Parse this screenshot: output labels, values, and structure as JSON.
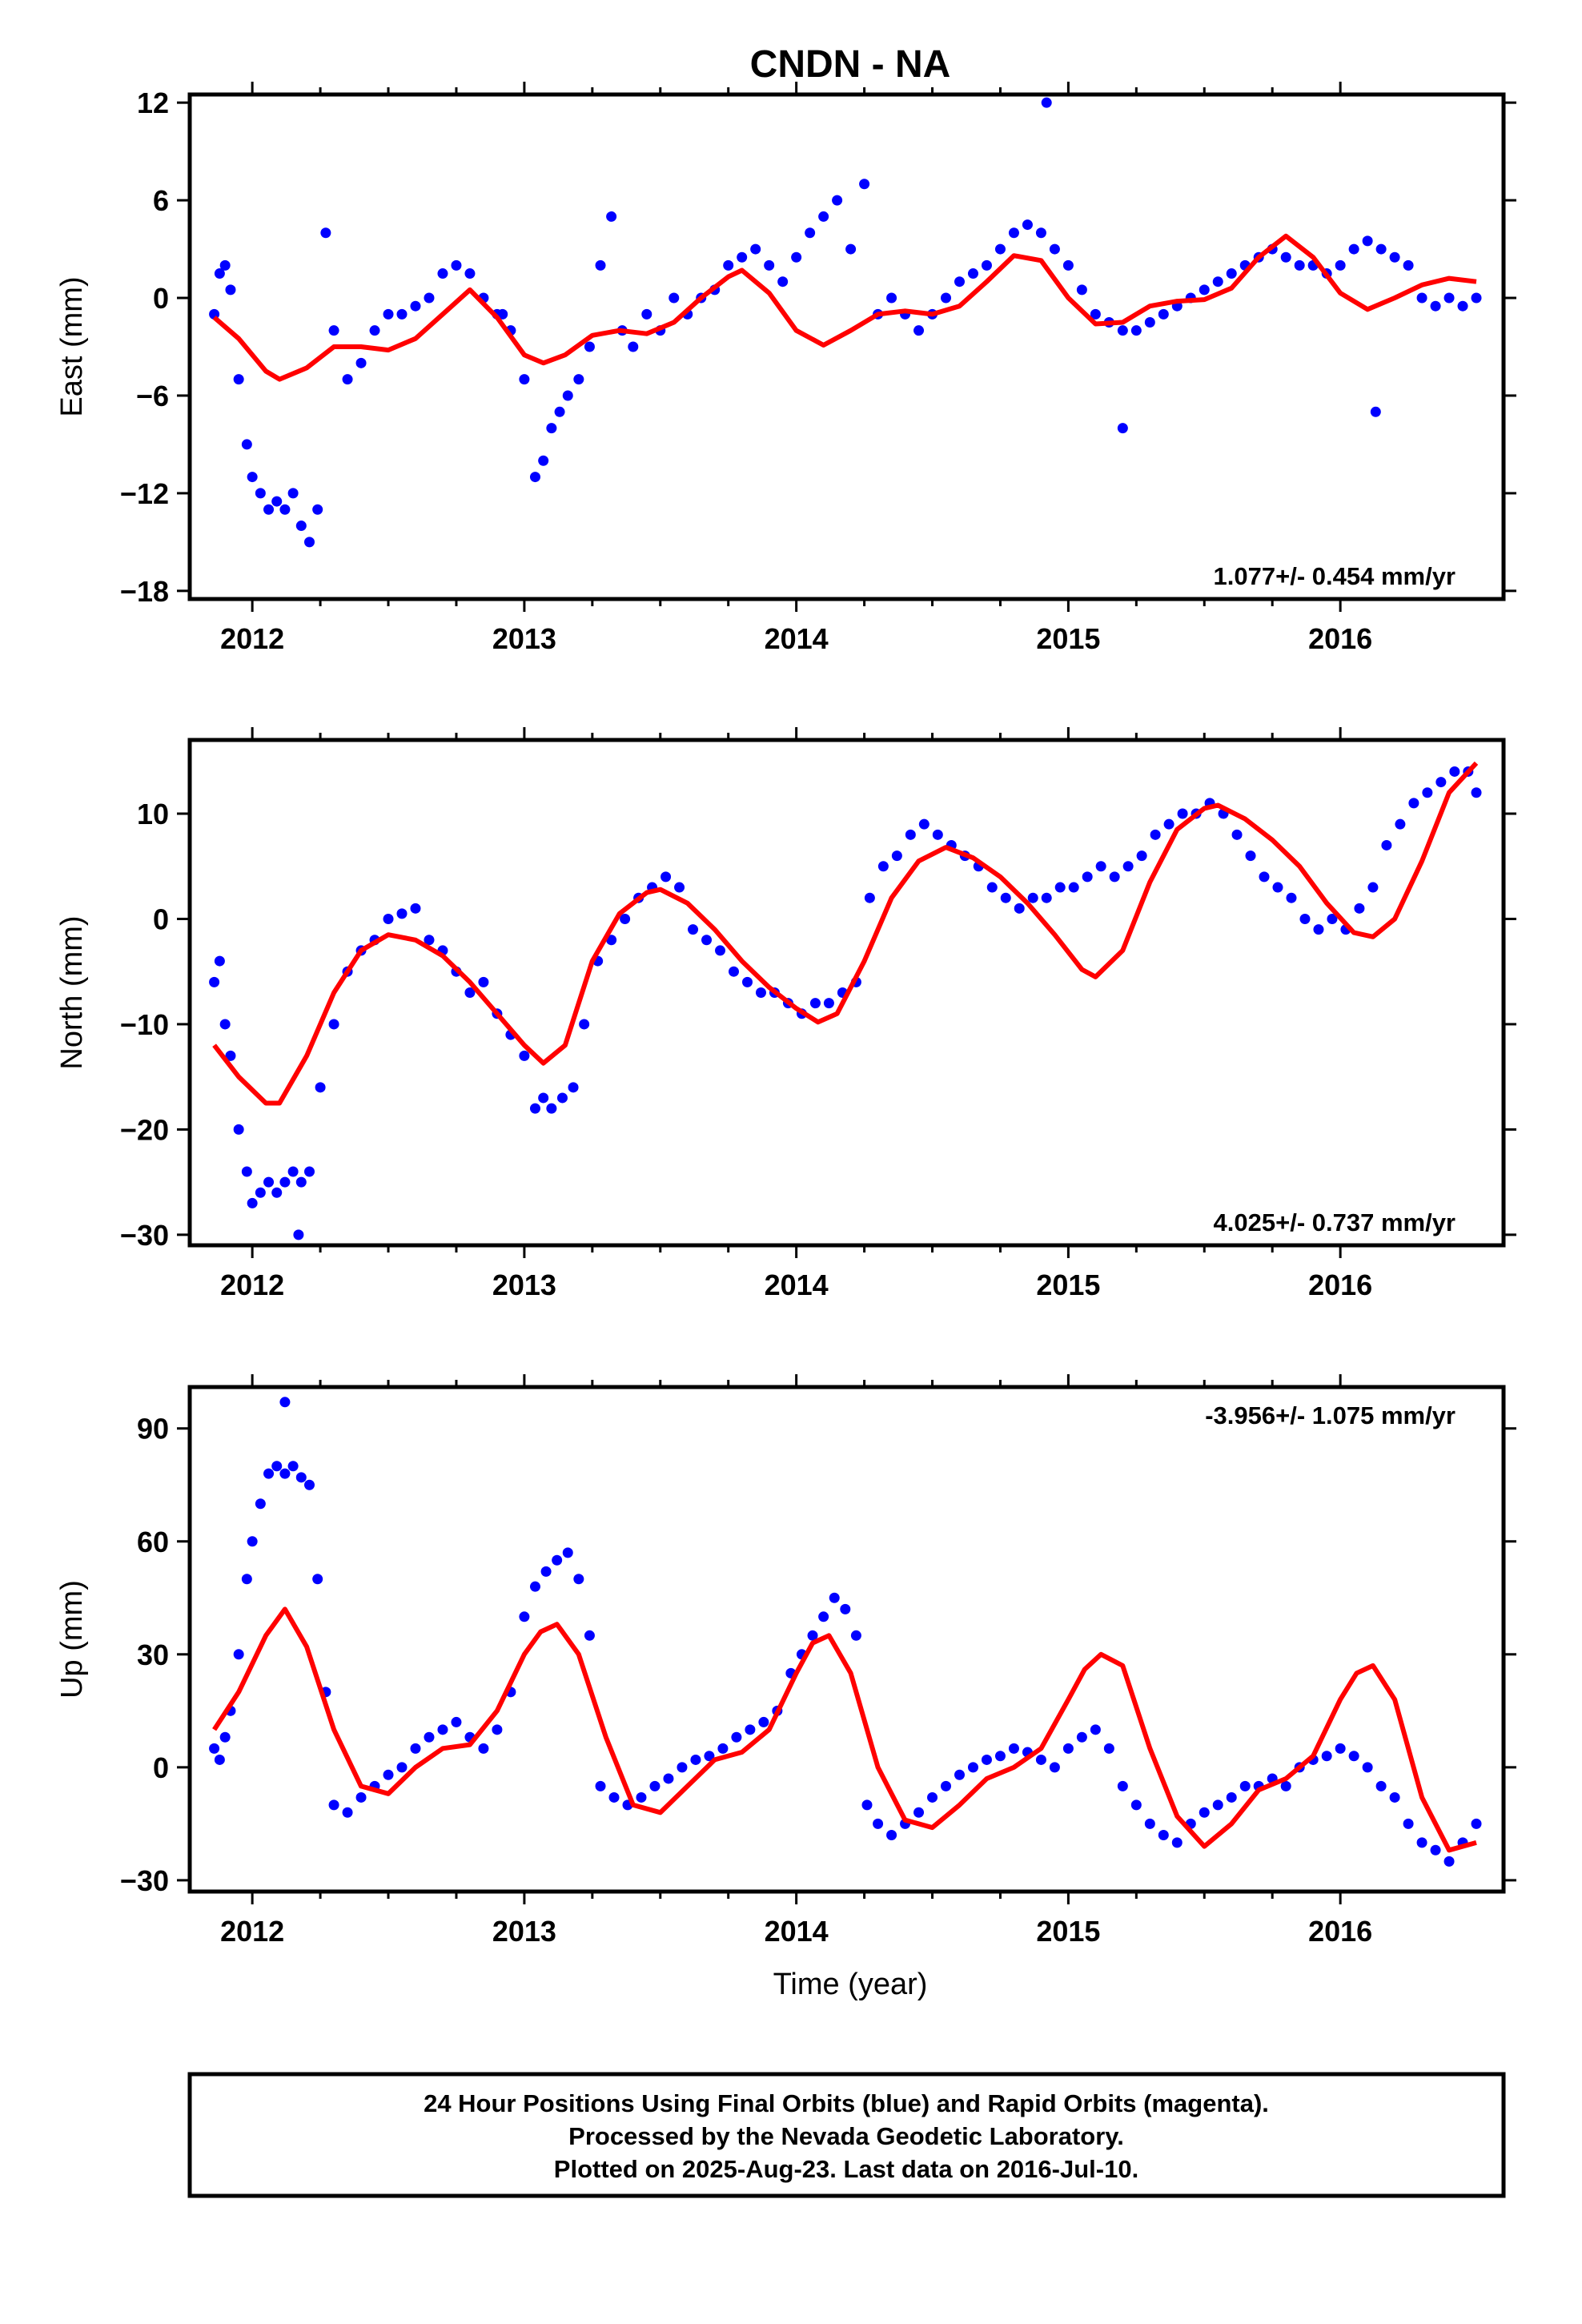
{
  "title": "CNDN - NA",
  "xlabel": "Time (year)",
  "colors": {
    "final_orbits": "#0000ff",
    "model": "#ff0000",
    "frame": "#000000"
  },
  "caption": [
    "24 Hour Positions Using Final Orbits (blue) and Rapid Orbits (magenta).",
    "Processed by the Nevada Geodetic Laboratory.",
    "Plotted on 2025-Aug-23. Last data on 2016-Jul-10."
  ],
  "chart_data": [
    {
      "type": "scatter",
      "component": "east",
      "ylabel": "East (mm)",
      "rate_label": "1.077+/- 0.454 mm/yr",
      "xlim": [
        2011.77,
        2016.6
      ],
      "ylim": [
        -18.5,
        12.5
      ],
      "xticks": [
        2012,
        2013,
        2014,
        2015,
        2016
      ],
      "yticks": [
        -18,
        -12,
        -6,
        0,
        6,
        12
      ],
      "grid": false,
      "points": {
        "t": [
          2011.86,
          2011.88,
          2011.9,
          2011.92,
          2011.95,
          2011.98,
          2012.0,
          2012.03,
          2012.06,
          2012.09,
          2012.12,
          2012.15,
          2012.18,
          2012.21,
          2012.24,
          2012.27,
          2012.3,
          2012.35,
          2012.4,
          2012.45,
          2012.5,
          2012.55,
          2012.6,
          2012.65,
          2012.7,
          2012.75,
          2012.8,
          2012.85,
          2012.9,
          2012.95,
          2013.0,
          2013.04,
          2013.07,
          2013.1,
          2013.13,
          2013.16,
          2013.2,
          2013.24,
          2013.28,
          2013.32,
          2013.36,
          2013.4,
          2013.45,
          2013.5,
          2013.55,
          2013.6,
          2013.65,
          2013.7,
          2013.75,
          2013.8,
          2013.85,
          2013.9,
          2013.95,
          2014.0,
          2014.05,
          2014.1,
          2014.15,
          2014.2,
          2014.25,
          2014.3,
          2014.35,
          2014.4,
          2014.45,
          2014.5,
          2014.55,
          2014.6,
          2014.65,
          2014.7,
          2014.75,
          2014.8,
          2014.85,
          2014.9,
          2014.95,
          2015.0,
          2015.05,
          2015.1,
          2015.15,
          2015.2,
          2015.25,
          2015.3,
          2015.35,
          2015.4,
          2015.45,
          2015.5,
          2015.55,
          2015.6,
          2015.65,
          2015.7,
          2015.75,
          2015.8,
          2015.85,
          2015.9,
          2015.95,
          2016.0,
          2016.05,
          2016.1,
          2016.15,
          2016.2,
          2016.25,
          2016.3,
          2016.35,
          2016.4,
          2016.45,
          2016.5,
          2012.92,
          2014.92,
          2015.2,
          2016.13
        ],
        "y": [
          -1,
          1.5,
          2,
          0.5,
          -5,
          -9,
          -11,
          -12,
          -13,
          -12.5,
          -13,
          -12,
          -14,
          -15,
          -13,
          4,
          -2,
          -5,
          -4,
          -2,
          -1,
          -1,
          -0.5,
          0,
          1.5,
          2,
          1.5,
          0,
          -1,
          -2,
          -5,
          -11,
          -10,
          -8,
          -7,
          -6,
          -5,
          -3,
          2,
          5,
          -2,
          -3,
          -1,
          -2,
          0,
          -1,
          0,
          0.5,
          2,
          2.5,
          3,
          2,
          1,
          2.5,
          4,
          5,
          6,
          3,
          7,
          -1,
          0,
          -1,
          -2,
          -1,
          0,
          1,
          1.5,
          2,
          3,
          4,
          4.5,
          4,
          3,
          2,
          0.5,
          -1,
          -1.5,
          -2,
          -2,
          -1.5,
          -1,
          -0.5,
          0,
          0.5,
          1,
          1.5,
          2,
          2.5,
          3,
          2.5,
          2,
          2,
          1.5,
          2,
          3,
          3.5,
          3,
          2.5,
          2,
          0,
          -0.5,
          0,
          -0.5,
          0,
          -1,
          12,
          -8,
          -7
        ]
      },
      "model": {
        "t": [
          2011.86,
          2011.95,
          2012.05,
          2012.1,
          2012.2,
          2012.3,
          2012.4,
          2012.5,
          2012.6,
          2012.7,
          2012.8,
          2012.9,
          2013.0,
          2013.07,
          2013.15,
          2013.25,
          2013.35,
          2013.45,
          2013.55,
          2013.65,
          2013.75,
          2013.8,
          2013.9,
          2014.0,
          2014.1,
          2014.2,
          2014.3,
          2014.4,
          2014.5,
          2014.6,
          2014.7,
          2014.8,
          2014.9,
          2015.0,
          2015.1,
          2015.2,
          2015.3,
          2015.4,
          2015.5,
          2015.6,
          2015.7,
          2015.8,
          2015.9,
          2016.0,
          2016.1,
          2016.2,
          2016.3,
          2016.4,
          2016.5
        ],
        "y": [
          -1.2,
          -2.5,
          -4.5,
          -5,
          -4.3,
          -3,
          -3,
          -3.2,
          -2.5,
          -1,
          0.5,
          -1.2,
          -3.5,
          -4,
          -3.5,
          -2.3,
          -2,
          -2.2,
          -1.5,
          0,
          1.3,
          1.7,
          0.3,
          -2,
          -2.9,
          -2,
          -1,
          -0.8,
          -1,
          -0.5,
          1,
          2.6,
          2.3,
          0,
          -1.6,
          -1.5,
          -0.5,
          -0.2,
          -0.1,
          0.6,
          2.5,
          3.8,
          2.5,
          0.3,
          -0.7,
          0,
          0.8,
          1.2,
          1
        ]
      }
    },
    {
      "type": "scatter",
      "component": "north",
      "ylabel": "North (mm)",
      "rate_label": "4.025+/- 0.737 mm/yr",
      "xlim": [
        2011.77,
        2016.6
      ],
      "ylim": [
        -31,
        17
      ],
      "xticks": [
        2012,
        2013,
        2014,
        2015,
        2016
      ],
      "yticks": [
        -30,
        -20,
        -10,
        0,
        10
      ],
      "grid": false,
      "points": {
        "t": [
          2011.86,
          2011.88,
          2011.9,
          2011.92,
          2011.95,
          2011.98,
          2012.0,
          2012.03,
          2012.06,
          2012.09,
          2012.12,
          2012.15,
          2012.18,
          2012.21,
          2012.25,
          2012.3,
          2012.35,
          2012.4,
          2012.45,
          2012.5,
          2012.55,
          2012.6,
          2012.65,
          2012.7,
          2012.75,
          2012.8,
          2012.85,
          2012.9,
          2012.95,
          2013.0,
          2013.04,
          2013.07,
          2013.1,
          2013.14,
          2013.18,
          2013.22,
          2013.27,
          2013.32,
          2013.37,
          2013.42,
          2013.47,
          2013.52,
          2013.57,
          2013.62,
          2013.67,
          2013.72,
          2013.77,
          2013.82,
          2013.87,
          2013.92,
          2013.97,
          2014.02,
          2014.07,
          2014.12,
          2014.17,
          2014.22,
          2014.27,
          2014.32,
          2014.37,
          2014.42,
          2014.47,
          2014.52,
          2014.57,
          2014.62,
          2014.67,
          2014.72,
          2014.77,
          2014.82,
          2014.87,
          2014.92,
          2014.97,
          2015.02,
          2015.07,
          2015.12,
          2015.17,
          2015.22,
          2015.27,
          2015.32,
          2015.37,
          2015.42,
          2015.47,
          2015.52,
          2015.57,
          2015.62,
          2015.67,
          2015.72,
          2015.77,
          2015.82,
          2015.87,
          2015.92,
          2015.97,
          2016.02,
          2016.07,
          2016.12,
          2016.17,
          2016.22,
          2016.27,
          2016.32,
          2016.37,
          2016.42,
          2016.47,
          2016.5,
          2012.17
        ],
        "y": [
          -6,
          -4,
          -10,
          -13,
          -20,
          -24,
          -27,
          -26,
          -25,
          -26,
          -25,
          -24,
          -25,
          -24,
          -16,
          -10,
          -5,
          -3,
          -2,
          0,
          0.5,
          1,
          -2,
          -3,
          -5,
          -7,
          -6,
          -9,
          -11,
          -13,
          -18,
          -17,
          -18,
          -17,
          -16,
          -10,
          -4,
          -2,
          0,
          2,
          3,
          4,
          3,
          -1,
          -2,
          -3,
          -5,
          -6,
          -7,
          -7,
          -8,
          -9,
          -8,
          -8,
          -7,
          -6,
          2,
          5,
          6,
          8,
          9,
          8,
          7,
          6,
          5,
          3,
          2,
          1,
          2,
          2,
          3,
          3,
          4,
          5,
          4,
          5,
          6,
          8,
          9,
          10,
          10,
          11,
          10,
          8,
          6,
          4,
          3,
          2,
          0,
          -1,
          0,
          -1,
          1,
          3,
          7,
          9,
          11,
          12,
          13,
          14,
          14,
          12,
          -30
        ]
      },
      "model": {
        "t": [
          2011.86,
          2011.95,
          2012.05,
          2012.1,
          2012.2,
          2012.3,
          2012.4,
          2012.5,
          2012.6,
          2012.7,
          2012.8,
          2012.9,
          2013.0,
          2013.07,
          2013.15,
          2013.25,
          2013.35,
          2013.45,
          2013.5,
          2013.6,
          2013.7,
          2013.8,
          2013.9,
          2014.0,
          2014.08,
          2014.15,
          2014.25,
          2014.35,
          2014.45,
          2014.55,
          2014.65,
          2014.75,
          2014.85,
          2014.95,
          2015.05,
          2015.1,
          2015.2,
          2015.3,
          2015.4,
          2015.5,
          2015.55,
          2015.65,
          2015.75,
          2015.85,
          2015.95,
          2016.05,
          2016.12,
          2016.2,
          2016.3,
          2016.4,
          2016.5
        ],
        "y": [
          -12,
          -15,
          -17.5,
          -17.5,
          -13,
          -7,
          -3,
          -1.5,
          -2,
          -3.5,
          -6,
          -9,
          -12,
          -13.7,
          -12,
          -4,
          0.5,
          2.5,
          2.8,
          1.5,
          -1,
          -4,
          -6.5,
          -8.5,
          -9.8,
          -9,
          -4,
          2,
          5.5,
          6.8,
          5.8,
          4,
          1.5,
          -1.5,
          -4.8,
          -5.5,
          -3,
          3.5,
          8.5,
          10.5,
          10.8,
          9.5,
          7.5,
          5,
          1.5,
          -1.3,
          -1.7,
          0,
          5.5,
          12,
          14.8
        ]
      }
    },
    {
      "type": "scatter",
      "component": "up",
      "ylabel": "Up (mm)",
      "rate_label": "-3.956+/- 1.075 mm/yr",
      "xlim": [
        2011.77,
        2016.6
      ],
      "ylim": [
        -33,
        101
      ],
      "xticks": [
        2012,
        2013,
        2014,
        2015,
        2016
      ],
      "yticks": [
        -30,
        0,
        30,
        60,
        90
      ],
      "grid": false,
      "points": {
        "t": [
          2011.86,
          2011.88,
          2011.9,
          2011.92,
          2011.95,
          2011.98,
          2012.0,
          2012.03,
          2012.06,
          2012.09,
          2012.12,
          2012.15,
          2012.18,
          2012.21,
          2012.24,
          2012.27,
          2012.3,
          2012.35,
          2012.4,
          2012.45,
          2012.5,
          2012.55,
          2012.6,
          2012.65,
          2012.7,
          2012.75,
          2012.8,
          2012.85,
          2012.9,
          2012.95,
          2013.0,
          2013.04,
          2013.08,
          2013.12,
          2013.16,
          2013.2,
          2013.24,
          2013.28,
          2013.33,
          2013.38,
          2013.43,
          2013.48,
          2013.53,
          2013.58,
          2013.63,
          2013.68,
          2013.73,
          2013.78,
          2013.83,
          2013.88,
          2013.93,
          2013.98,
          2014.02,
          2014.06,
          2014.1,
          2014.14,
          2014.18,
          2014.22,
          2014.26,
          2014.3,
          2014.35,
          2014.4,
          2014.45,
          2014.5,
          2014.55,
          2014.6,
          2014.65,
          2014.7,
          2014.75,
          2014.8,
          2014.85,
          2014.9,
          2014.95,
          2015.0,
          2015.05,
          2015.1,
          2015.15,
          2015.2,
          2015.25,
          2015.3,
          2015.35,
          2015.4,
          2015.45,
          2015.5,
          2015.55,
          2015.6,
          2015.65,
          2015.7,
          2015.75,
          2015.8,
          2015.85,
          2015.9,
          2015.95,
          2016.0,
          2016.05,
          2016.1,
          2016.15,
          2016.2,
          2016.25,
          2016.3,
          2016.35,
          2016.4,
          2016.45,
          2016.5,
          2012.12
        ],
        "y": [
          5,
          2,
          8,
          15,
          30,
          50,
          60,
          70,
          78,
          80,
          78,
          80,
          77,
          75,
          50,
          20,
          -10,
          -12,
          -8,
          -5,
          -2,
          0,
          5,
          8,
          10,
          12,
          8,
          5,
          10,
          20,
          40,
          48,
          52,
          55,
          57,
          50,
          35,
          -5,
          -8,
          -10,
          -8,
          -5,
          -3,
          0,
          2,
          3,
          5,
          8,
          10,
          12,
          15,
          25,
          30,
          35,
          40,
          45,
          42,
          35,
          -10,
          -15,
          -18,
          -15,
          -12,
          -8,
          -5,
          -2,
          0,
          2,
          3,
          5,
          4,
          2,
          0,
          5,
          8,
          10,
          5,
          -5,
          -10,
          -15,
          -18,
          -20,
          -15,
          -12,
          -10,
          -8,
          -5,
          -5,
          -3,
          -5,
          0,
          2,
          3,
          5,
          3,
          0,
          -5,
          -8,
          -15,
          -20,
          -22,
          -25,
          -20,
          -15,
          97
        ]
      },
      "model": {
        "t": [
          2011.86,
          2011.95,
          2012.05,
          2012.12,
          2012.2,
          2012.3,
          2012.4,
          2012.5,
          2012.6,
          2012.7,
          2012.8,
          2012.9,
          2013.0,
          2013.06,
          2013.12,
          2013.2,
          2013.3,
          2013.4,
          2013.5,
          2013.6,
          2013.7,
          2013.8,
          2013.9,
          2014.0,
          2014.06,
          2014.12,
          2014.2,
          2014.3,
          2014.4,
          2014.5,
          2014.6,
          2014.7,
          2014.8,
          2014.9,
          2015.0,
          2015.06,
          2015.12,
          2015.2,
          2015.3,
          2015.4,
          2015.5,
          2015.6,
          2015.7,
          2015.8,
          2015.9,
          2016.0,
          2016.06,
          2016.12,
          2016.2,
          2016.3,
          2016.4,
          2016.5
        ],
        "y": [
          10,
          20,
          35,
          42,
          32,
          10,
          -5,
          -7,
          0,
          5,
          6,
          15,
          30,
          36,
          38,
          30,
          8,
          -10,
          -12,
          -5,
          2,
          4,
          10,
          25,
          33,
          35,
          25,
          0,
          -14,
          -16,
          -10,
          -3,
          0,
          5,
          18,
          26,
          30,
          27,
          5,
          -13,
          -21,
          -15,
          -6,
          -3,
          3,
          18,
          25,
          27,
          18,
          -8,
          -22,
          -20
        ]
      }
    }
  ]
}
